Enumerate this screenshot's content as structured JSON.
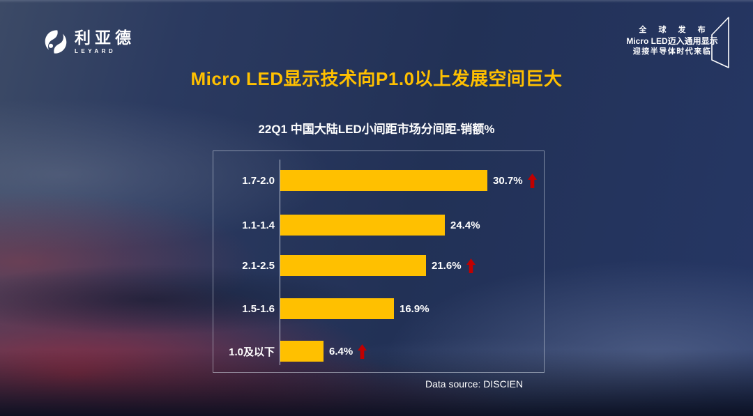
{
  "logo": {
    "brand_cn": "利亚德",
    "brand_en": "LEYARD"
  },
  "header_right": {
    "line1": "全 球 发 布",
    "line2": "Micro LED迈入通用显示",
    "line3": "迎接半导体时代来临"
  },
  "title": "Micro LED显示技术向P1.0以上发展空间巨大",
  "chart_data": {
    "type": "bar",
    "orientation": "horizontal",
    "title": "22Q1 中国大陆LED小间距市场分间距-销额%",
    "categories": [
      "1.7-2.0",
      "1.1-1.4",
      "2.1-2.5",
      "1.5-1.6",
      "1.0及以下"
    ],
    "values": [
      30.7,
      24.4,
      21.6,
      16.9,
      6.4
    ],
    "value_labels": [
      "30.7%",
      "24.4%",
      "21.6%",
      "16.9%",
      "6.4%"
    ],
    "up_arrows": [
      true,
      false,
      true,
      false,
      true
    ],
    "xlim": [
      0,
      39
    ],
    "grid": false,
    "legend": false,
    "bar_color": "#FFC000",
    "arrow_color": "#C00000",
    "label_color": "#FFFFFF"
  },
  "footer": {
    "data_source": "Data source: DISCIEN"
  },
  "colors": {
    "title": "#FFC000",
    "panel_border": "rgba(212,218,230,0.55)"
  }
}
